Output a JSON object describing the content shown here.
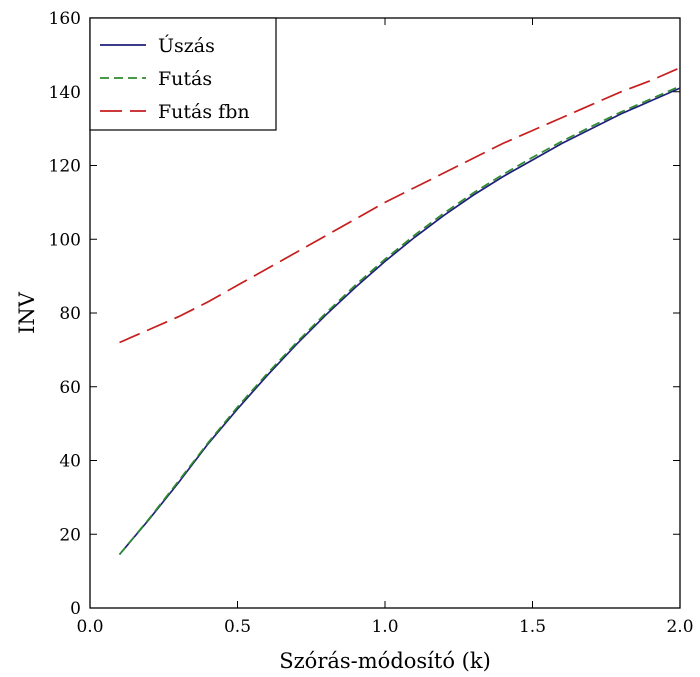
{
  "chart_data": {
    "type": "line",
    "xlabel": "Szórás-módosító (k)",
    "ylabel": "INV",
    "xlim": [
      0.0,
      2.0
    ],
    "ylim": [
      0,
      160
    ],
    "x_ticks": [
      0.0,
      0.5,
      1.0,
      1.5,
      2.0
    ],
    "x_tick_labels": [
      "0.0",
      "0.5",
      "1.0",
      "1.5",
      "2.0"
    ],
    "y_ticks": [
      0,
      20,
      40,
      60,
      80,
      100,
      120,
      140,
      160
    ],
    "y_tick_labels": [
      "0",
      "20",
      "40",
      "60",
      "80",
      "100",
      "120",
      "140",
      "160"
    ],
    "legend_position": "top-left",
    "grid": false,
    "series": [
      {
        "name": "Úszás",
        "color": "#1f1f7a",
        "style": "solid",
        "x": [
          0.1,
          0.2,
          0.3,
          0.4,
          0.5,
          0.6,
          0.7,
          0.8,
          0.9,
          1.0,
          1.1,
          1.2,
          1.3,
          1.4,
          1.5,
          1.6,
          1.7,
          1.8,
          1.9,
          2.0
        ],
        "y": [
          14.5,
          24,
          34,
          44.5,
          54,
          63,
          71.5,
          79.5,
          87,
          94,
          100.5,
          106.5,
          112,
          117,
          121.5,
          126,
          130,
          134,
          137.5,
          141
        ]
      },
      {
        "name": "Futás",
        "color": "#2e8b2e",
        "style": "dashed",
        "x": [
          0.1,
          0.2,
          0.3,
          0.4,
          0.5,
          0.6,
          0.7,
          0.8,
          0.9,
          1.0,
          1.1,
          1.2,
          1.3,
          1.4,
          1.5,
          1.6,
          1.7,
          1.8,
          1.9,
          2.0
        ],
        "y": [
          14.5,
          24.2,
          34.4,
          44.8,
          54.5,
          63.5,
          72,
          80,
          87.6,
          94.6,
          101.1,
          107.1,
          112.6,
          117.6,
          122.2,
          126.6,
          130.6,
          134.5,
          138,
          141.5
        ]
      },
      {
        "name": "Futás fbn",
        "color": "#c81e1e",
        "style": "longdash",
        "x": [
          0.1,
          0.2,
          0.3,
          0.4,
          0.5,
          0.6,
          0.7,
          0.8,
          0.9,
          1.0,
          1.1,
          1.2,
          1.3,
          1.4,
          1.5,
          1.6,
          1.7,
          1.8,
          1.9,
          2.0
        ],
        "y": [
          72,
          75.5,
          79,
          83,
          87.5,
          92,
          96.5,
          101,
          105.5,
          110,
          114,
          118,
          122,
          126,
          129.5,
          133,
          136.5,
          140,
          143,
          146.5
        ]
      }
    ]
  }
}
